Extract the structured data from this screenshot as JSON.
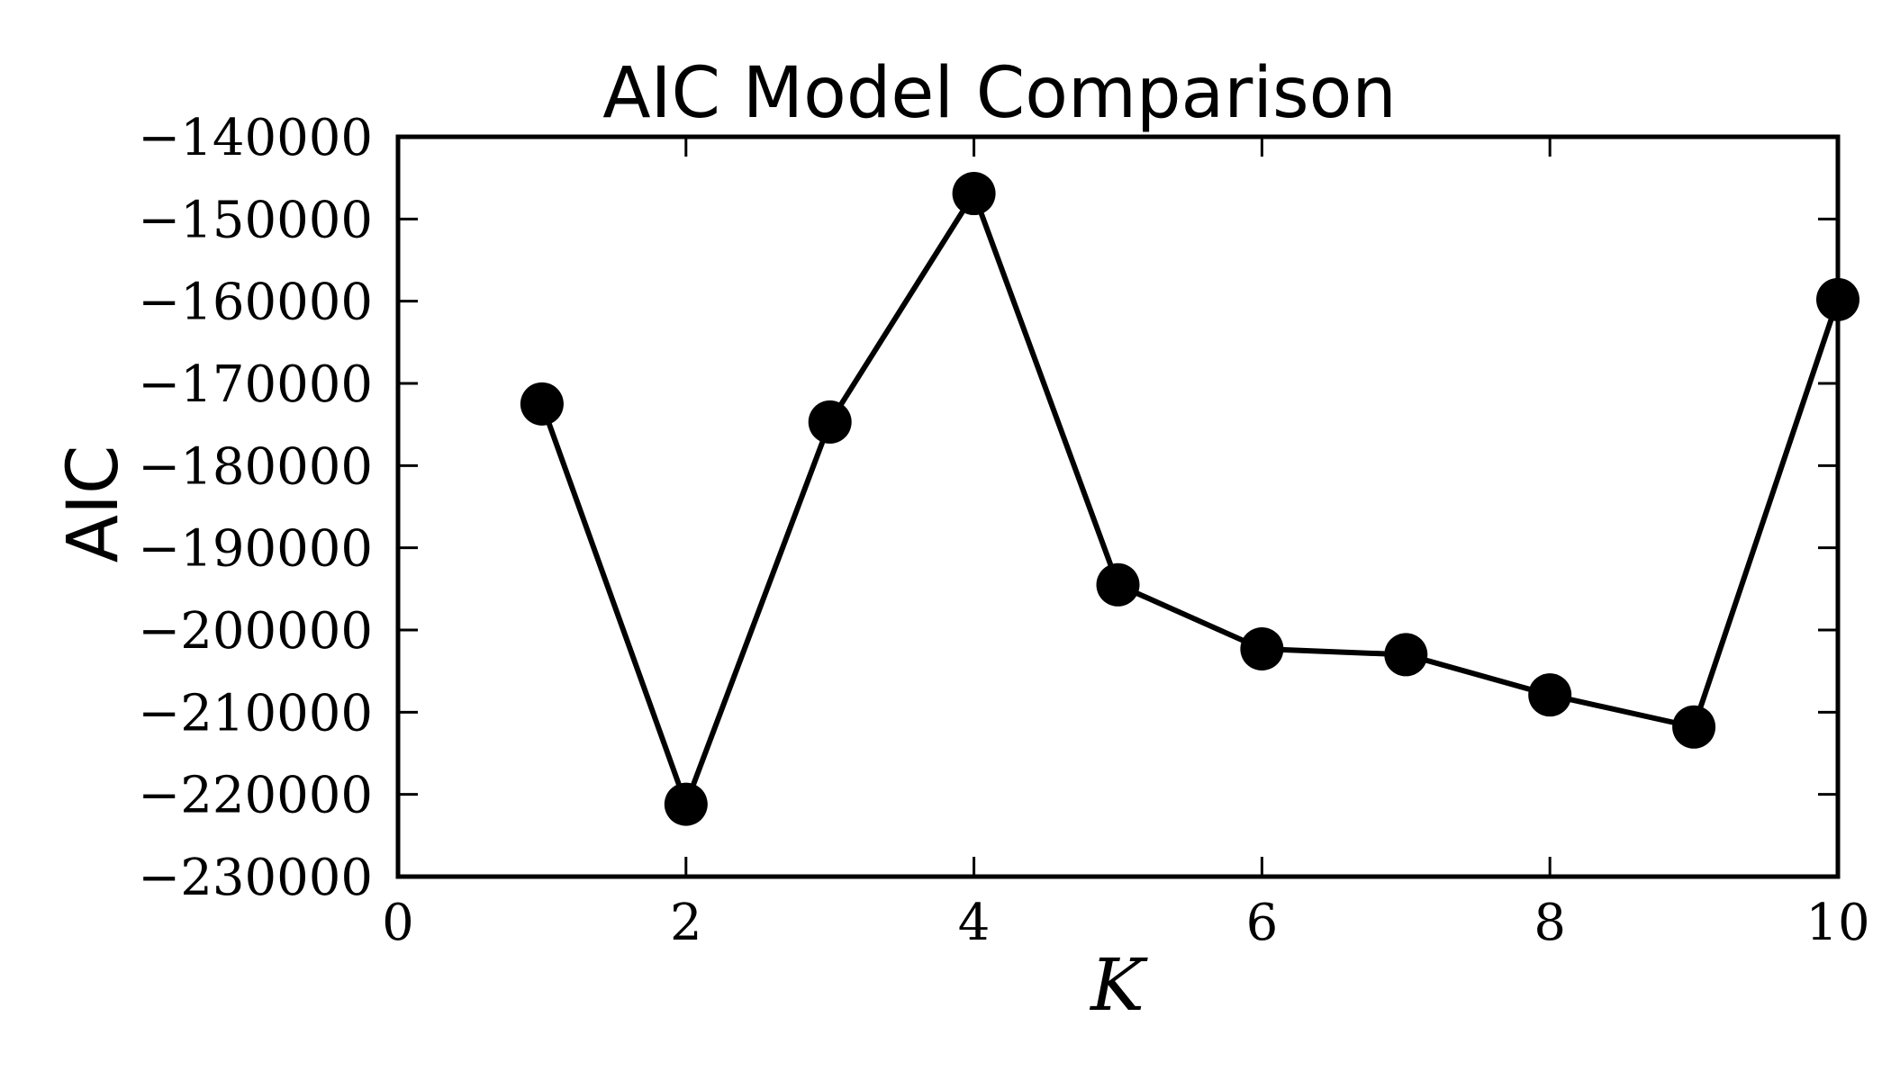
{
  "chart_data": {
    "type": "line",
    "title": "AIC Model Comparison",
    "xlabel": "K",
    "ylabel": "AIC",
    "xlim": [
      0,
      10
    ],
    "ylim": [
      -230000,
      -140000
    ],
    "xticks": [
      "0",
      "2",
      "4",
      "6",
      "8",
      "10"
    ],
    "yticks": [
      "−140000",
      "−150000",
      "−160000",
      "−170000",
      "−180000",
      "−190000",
      "−200000",
      "−210000",
      "−220000",
      "−230000"
    ],
    "x": [
      1,
      2,
      3,
      4,
      5,
      6,
      7,
      8,
      9,
      10
    ],
    "values": [
      -172500,
      -221200,
      -174700,
      -146900,
      -194500,
      -202300,
      -203000,
      -207900,
      -211800,
      -159800
    ],
    "grid": false,
    "line_color": "#000000",
    "marker": "circle"
  }
}
